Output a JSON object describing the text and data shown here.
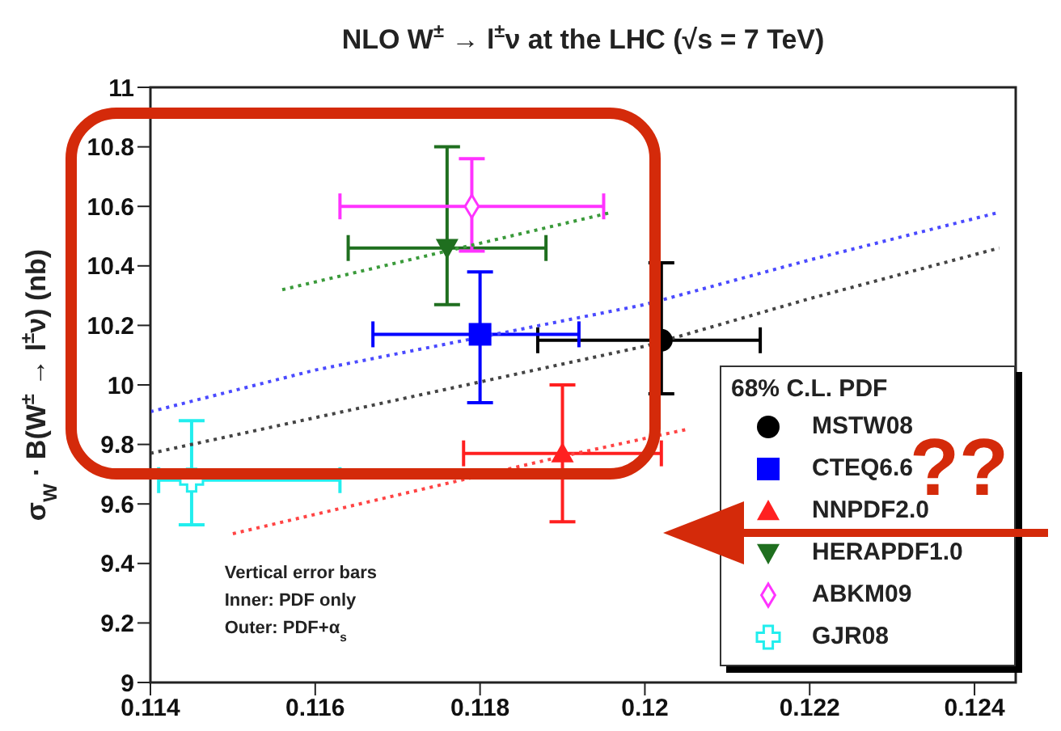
{
  "chart_data": {
    "type": "scatter",
    "title": "NLO W$^{±}$ → l$^{±}$ν at the LHC (√s = 7 TeV)",
    "ylabel": "σ$_{W}$ · B(W$^{±}$ → l$^{±}$ν) (nb)",
    "legend_title": "68% C.L. PDF",
    "xlim": [
      0.114,
      0.1245
    ],
    "xticks": [
      {
        "value": 0.114,
        "label": "0.114"
      },
      {
        "value": 0.116,
        "label": "0.116"
      },
      {
        "value": 0.118,
        "label": "0.118"
      },
      {
        "value": 0.12,
        "label": "0.12"
      },
      {
        "value": 0.122,
        "label": "0.122"
      },
      {
        "value": 0.124,
        "label": "0.124"
      }
    ],
    "ylim": [
      9,
      11
    ],
    "yticks": [
      9,
      9.2,
      9.4,
      9.6,
      9.8,
      10,
      10.2,
      10.4,
      10.6,
      10.8,
      11
    ],
    "legend": "bottom right",
    "annotations": [
      "Vertical error bars",
      "Inner: PDF only",
      "Outer: PDF+α$_{s}$",
      "??"
    ],
    "series": [
      {
        "name": "MSTW08",
        "color": "#000000",
        "marker": "circle",
        "x": [
          0.1202
        ],
        "values": [
          10.15
        ],
        "errors": [
          [
            9.97,
            10.41
          ]
        ],
        "xerrors": [
          [
            0.1187,
            0.1214
          ]
        ]
      },
      {
        "name": "CTEQ6.6",
        "color": "#0000ff",
        "marker": "square",
        "x": [
          0.118
        ],
        "values": [
          10.17
        ],
        "errors": [
          [
            9.94,
            10.38
          ]
        ],
        "xerrors": [
          [
            0.1167,
            0.1192
          ]
        ]
      },
      {
        "name": "NNPDF2.0",
        "color": "#ff2020",
        "marker": "triangle",
        "x": [
          0.119
        ],
        "values": [
          9.77
        ],
        "errors": [
          [
            9.54,
            10.0
          ]
        ],
        "xerrors": [
          [
            0.1178,
            0.1202
          ]
        ]
      },
      {
        "name": "HERAPDF1.0",
        "color": "#1f6f1f",
        "marker": "triangle-down",
        "x": [
          0.1176
        ],
        "values": [
          10.46
        ],
        "errors": [
          [
            10.27,
            10.8
          ]
        ],
        "xerrors": [
          [
            0.1164,
            0.1188
          ]
        ]
      },
      {
        "name": "ABKM09",
        "color": "#ff33ff",
        "marker": "diamond",
        "x": [
          0.1179
        ],
        "values": [
          10.6
        ],
        "errors": [
          [
            10.45,
            10.76
          ]
        ],
        "xerrors": [
          [
            0.1163,
            0.1195
          ]
        ]
      },
      {
        "name": "GJR08",
        "color": "#22eeee",
        "marker": "cross",
        "x": [
          0.1145
        ],
        "values": [
          9.68
        ],
        "errors": [
          [
            9.53,
            9.88
          ]
        ],
        "xerrors": [
          [
            0.1141,
            0.1163
          ]
        ]
      },
      {
        "type": "line",
        "color": "#3a9a3a",
        "line_style": "dotted",
        "marker": "none",
        "x": [
          0.1156,
          0.1176,
          0.1196
        ],
        "values": [
          10.32,
          10.45,
          10.58
        ]
      },
      {
        "type": "line",
        "color": "#4a4aff",
        "line_style": "dotted",
        "marker": "none",
        "x": [
          0.114,
          0.116,
          0.118,
          0.12,
          0.122,
          0.1243
        ],
        "values": [
          9.91,
          10.05,
          10.16,
          10.27,
          10.42,
          10.58
        ]
      },
      {
        "type": "line",
        "color": "#444444",
        "line_style": "dotted",
        "marker": "none",
        "x": [
          0.114,
          0.116,
          0.118,
          0.12,
          0.122,
          0.1243
        ],
        "values": [
          9.77,
          9.89,
          10.01,
          10.13,
          10.29,
          10.46
        ]
      },
      {
        "type": "line",
        "color": "#ff4444",
        "line_style": "dotted",
        "marker": "none",
        "x": [
          0.115,
          0.117,
          0.119,
          0.1205
        ],
        "values": [
          9.5,
          9.63,
          9.76,
          9.85
        ]
      }
    ]
  }
}
